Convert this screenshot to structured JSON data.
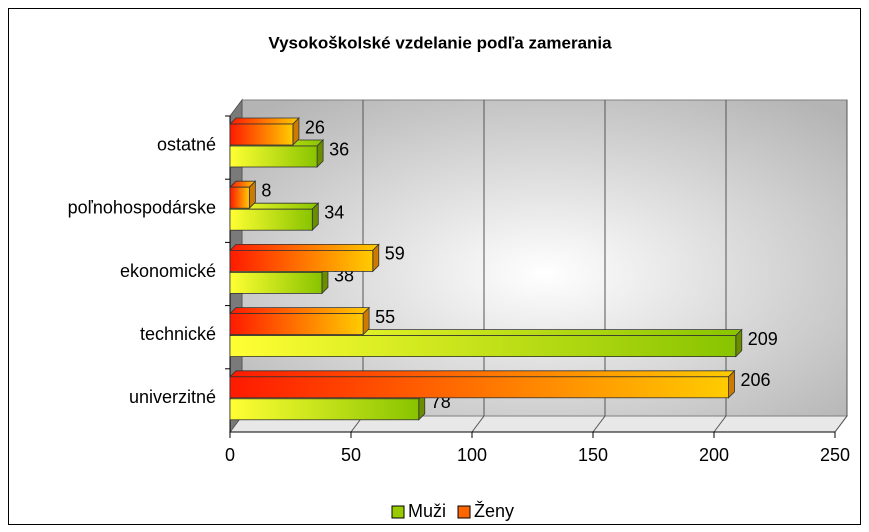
{
  "chart_data": {
    "type": "bar",
    "orientation": "horizontal",
    "title": "Vysokoškolské vzdelanie podľa zamerania",
    "categories": [
      "univerzitné",
      "technické",
      "ekonomické",
      "poľnohospodárske",
      "ostatné"
    ],
    "series": [
      {
        "name": "Muži",
        "color": "#99cc00",
        "values": [
          78,
          209,
          38,
          34,
          36
        ]
      },
      {
        "name": "Ženy",
        "color": "#ff6600",
        "values": [
          206,
          55,
          59,
          8,
          26
        ]
      }
    ],
    "xlim": [
      0,
      250
    ],
    "xticks": [
      0,
      50,
      100,
      150,
      200,
      250
    ],
    "grid": true,
    "legend": "bottom"
  }
}
